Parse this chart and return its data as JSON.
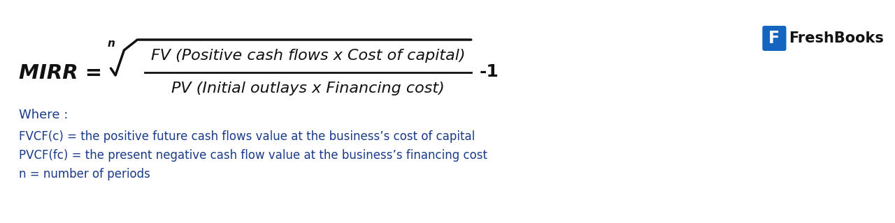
{
  "bg_color": "#ffffff",
  "formula_color": "#111111",
  "text_color": "#1a3a8a",
  "mirr_label": "MIRR =",
  "n_label": "n",
  "numerator": "FV (Positive cash flows x Cost of capital)",
  "denominator": "PV (Initial outlays x Financing cost)",
  "minus_one": "-1",
  "where_text": "Where :",
  "line1": "FVCF(c) = the positive future cash flows value at the business’s cost of capital",
  "line2": "PVCF(fc) = the present negative cash flow value at the business’s financing cost",
  "line3": "n = number of periods",
  "freshbooks_color": "#1565c0",
  "freshbooks_text_color": "#111111",
  "freshbooks_label": "FreshBooks"
}
